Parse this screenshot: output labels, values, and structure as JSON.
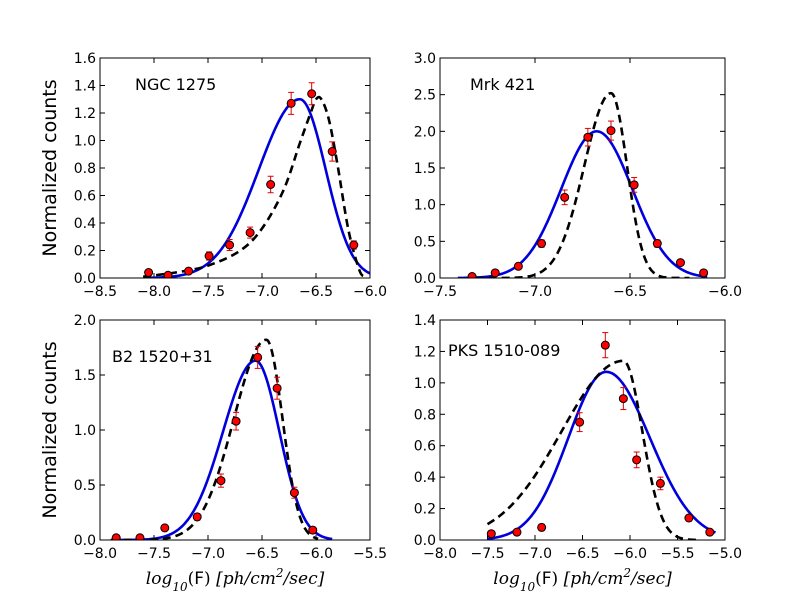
{
  "chart_data": [
    {
      "type": "scatter",
      "title": "NGC 1275",
      "xlabel": "",
      "ylabel": "Normalized counts",
      "xlim": [
        -8.5,
        -6.0
      ],
      "ylim": [
        0.0,
        1.6
      ],
      "xticks": [
        "−8.5",
        "−8.0",
        "−7.5",
        "−7.0",
        "−6.5",
        "−6.0"
      ],
      "yticks": [
        "0.0",
        "0.2",
        "0.4",
        "0.6",
        "0.8",
        "1.0",
        "1.2",
        "1.4",
        "1.6"
      ],
      "points": {
        "x": [
          -8.05,
          -7.87,
          -7.68,
          -7.49,
          -7.3,
          -7.11,
          -6.92,
          -6.73,
          -6.54,
          -6.35,
          -6.15
        ],
        "y": [
          0.04,
          0.02,
          0.05,
          0.16,
          0.24,
          0.33,
          0.68,
          1.27,
          1.34,
          0.92,
          0.24
        ],
        "err": [
          0.02,
          0.01,
          0.02,
          0.03,
          0.04,
          0.04,
          0.06,
          0.08,
          0.08,
          0.07,
          0.03
        ]
      },
      "solid_curve": {
        "color": "#0000dd",
        "peak_x": -6.65,
        "peak_y": 1.3,
        "sigma_left": 0.38,
        "sigma_right": 0.24,
        "x_range": [
          -8.1,
          -6.0
        ]
      },
      "dashed_curve": {
        "color": "#000000",
        "x": [
          -8.1,
          -7.8,
          -7.5,
          -7.2,
          -7.0,
          -6.8,
          -6.65,
          -6.55,
          -6.5,
          -6.45,
          -6.38,
          -6.3,
          -6.2,
          -6.1,
          -6.05
        ],
        "y": [
          0.01,
          0.04,
          0.09,
          0.2,
          0.36,
          0.64,
          0.98,
          1.2,
          1.3,
          1.3,
          1.15,
          0.82,
          0.35,
          0.06,
          0.01
        ]
      }
    },
    {
      "type": "scatter",
      "title": "Mrk 421",
      "xlabel": "",
      "ylabel": "",
      "xlim": [
        -7.6,
        -6.0
      ],
      "ylim": [
        0.0,
        3.0
      ],
      "xticks": [
        "−7.5",
        "−7.0",
        "−6.5",
        "−6.0"
      ],
      "yticks": [
        "0.0",
        "0.5",
        "1.0",
        "1.5",
        "2.0",
        "2.5",
        "3.0"
      ],
      "points": {
        "x": [
          -7.42,
          -7.29,
          -7.16,
          -7.03,
          -6.9,
          -6.77,
          -6.64,
          -6.51,
          -6.38,
          -6.25,
          -6.12
        ],
        "y": [
          0.02,
          0.07,
          0.16,
          0.47,
          1.1,
          1.92,
          2.01,
          1.27,
          0.47,
          0.21,
          0.07
        ],
        "err": [
          0.01,
          0.02,
          0.03,
          0.05,
          0.1,
          0.12,
          0.13,
          0.1,
          0.05,
          0.03,
          0.02
        ]
      },
      "solid_curve": {
        "color": "#0000dd",
        "peak_x": -6.72,
        "peak_y": 2.0,
        "sigma_left": 0.2,
        "sigma_right": 0.2,
        "x_range": [
          -7.5,
          -6.1
        ]
      },
      "dashed_curve": {
        "color": "#000000",
        "peak_x": -6.64,
        "peak_y": 2.52,
        "sigma_left": 0.15,
        "sigma_right": 0.09,
        "x_range": [
          -7.4,
          -6.2
        ]
      }
    },
    {
      "type": "scatter",
      "title": "B2 1520+31",
      "xlabel": "log10(F) [ph/cm2/sec]",
      "ylabel": "Normalized counts",
      "xlim": [
        -8.0,
        -5.5
      ],
      "ylim": [
        0.0,
        2.0
      ],
      "xticks": [
        "−8.0",
        "−7.5",
        "−7.0",
        "−6.5",
        "−6.0",
        "−5.5"
      ],
      "yticks": [
        "0.0",
        "0.5",
        "1.0",
        "1.5",
        "2.0"
      ],
      "points": {
        "x": [
          -7.85,
          -7.63,
          -7.4,
          -7.1,
          -6.88,
          -6.74,
          -6.54,
          -6.36,
          -6.2,
          -6.03
        ],
        "y": [
          0.02,
          0.02,
          0.11,
          0.21,
          0.54,
          1.08,
          1.66,
          1.38,
          0.43,
          0.09
        ],
        "err": [
          0.01,
          0.01,
          0.02,
          0.03,
          0.06,
          0.08,
          0.1,
          0.1,
          0.05,
          0.02
        ]
      },
      "solid_curve": {
        "color": "#0000dd",
        "peak_x": -6.56,
        "peak_y": 1.63,
        "sigma_left": 0.3,
        "sigma_right": 0.22,
        "x_range": [
          -7.9,
          -5.85
        ]
      },
      "dashed_curve": {
        "color": "#000000",
        "peak_x": -6.46,
        "peak_y": 1.82,
        "sigma_left": 0.3,
        "sigma_right": 0.15,
        "x_range": [
          -7.9,
          -5.98
        ]
      }
    },
    {
      "type": "scatter",
      "title": "PKS 1510-089",
      "xlabel": "log10(F) [ph/cm2/sec]",
      "ylabel": "",
      "xlim": [
        -8.0,
        -5.0
      ],
      "ylim": [
        0.0,
        1.4
      ],
      "xticks": [
        "−8.0",
        "−7.5",
        "−7.0",
        "−6.5",
        "−6.0",
        "−5.5",
        "−5.0"
      ],
      "yticks": [
        "0.0",
        "0.2",
        "0.4",
        "0.6",
        "0.8",
        "1.0",
        "1.2",
        "1.4"
      ],
      "points": {
        "x": [
          -7.46,
          -7.19,
          -6.93,
          -6.53,
          -6.26,
          -6.07,
          -5.93,
          -5.68,
          -5.38,
          -5.16
        ],
        "y": [
          0.04,
          0.05,
          0.08,
          0.75,
          1.24,
          0.9,
          0.51,
          0.36,
          0.14,
          0.05
        ],
        "err": [
          0.01,
          0.01,
          0.02,
          0.06,
          0.08,
          0.07,
          0.05,
          0.04,
          0.02,
          0.01
        ]
      },
      "solid_curve": {
        "color": "#0000dd",
        "peak_x": -6.25,
        "peak_y": 1.07,
        "sigma_left": 0.4,
        "sigma_right": 0.46,
        "x_range": [
          -7.5,
          -5.1
        ]
      },
      "dashed_curve": {
        "color": "#000000",
        "peak_x": -6.07,
        "peak_y": 1.14,
        "sigma_left": 0.65,
        "sigma_right": 0.2,
        "x_range": [
          -7.5,
          -5.3
        ]
      }
    }
  ],
  "xlabel_parts": {
    "log": "log",
    "sub": "10",
    "open": "(",
    "F": "F",
    "close": ")",
    "units": "[ph/cm",
    "exp": "2",
    "units_end": "/sec]"
  },
  "colors": {
    "marker_face": "#ff0000",
    "errorbar": "#e00000",
    "axis": "#000000",
    "background": "#ffffff"
  }
}
